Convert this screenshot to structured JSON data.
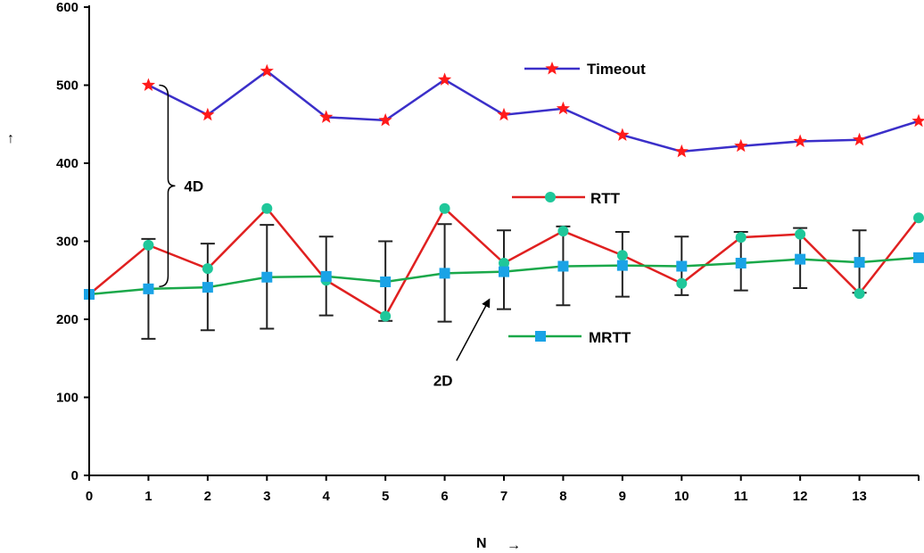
{
  "chart_data": {
    "type": "line",
    "xlabel": "N",
    "ylabel": "",
    "xlim": [
      0,
      14
    ],
    "ylim": [
      0,
      600
    ],
    "x_ticks": [
      0,
      1,
      2,
      3,
      4,
      5,
      6,
      7,
      8,
      9,
      10,
      11,
      12,
      13
    ],
    "y_ticks": [
      0,
      100,
      200,
      300,
      400,
      500,
      600
    ],
    "grid": false,
    "legend": "inline",
    "series": [
      {
        "name": "Timeout",
        "color": "#3b2fc9",
        "marker": "star",
        "marker_color": "#ff1a1a",
        "x": [
          1,
          2,
          3,
          4,
          5,
          6,
          7,
          8,
          9,
          10,
          11,
          12,
          13,
          14
        ],
        "values": [
          500,
          462,
          518,
          459,
          455,
          507,
          462,
          470,
          436,
          415,
          422,
          428,
          430,
          454
        ]
      },
      {
        "name": "RTT",
        "color": "#e02020",
        "marker": "circle",
        "marker_color": "#1fc79a",
        "x": [
          0,
          1,
          2,
          3,
          4,
          5,
          6,
          7,
          8,
          9,
          10,
          11,
          12,
          13,
          14
        ],
        "values": [
          232,
          295,
          265,
          342,
          250,
          204,
          342,
          272,
          313,
          282,
          246,
          305,
          309,
          233,
          330
        ]
      },
      {
        "name": "MRTT",
        "color": "#1aa84a",
        "marker": "square",
        "marker_color": "#1aa3e6",
        "x": [
          0,
          1,
          2,
          3,
          4,
          5,
          6,
          7,
          8,
          9,
          10,
          11,
          12,
          13,
          14
        ],
        "values": [
          232,
          239,
          241,
          254,
          255,
          248,
          259,
          261,
          268,
          269,
          268,
          272,
          277,
          273,
          279
        ],
        "error_low": [
          null,
          175,
          186,
          188,
          205,
          198,
          197,
          213,
          218,
          229,
          231,
          237,
          240,
          234,
          null
        ],
        "error_high": [
          null,
          303,
          297,
          321,
          306,
          300,
          322,
          314,
          319,
          312,
          306,
          312,
          317,
          314,
          null
        ]
      }
    ],
    "annotations": [
      {
        "text": "4D",
        "kind": "brace",
        "x": 1,
        "y_from": 242,
        "y_to": 500
      },
      {
        "text": "2D",
        "kind": "arrow",
        "x_from": 6.2,
        "y_from": 147,
        "x_to": 6.75,
        "y_to": 225
      }
    ],
    "y_arrow": "↑",
    "x_arrow": "→"
  }
}
